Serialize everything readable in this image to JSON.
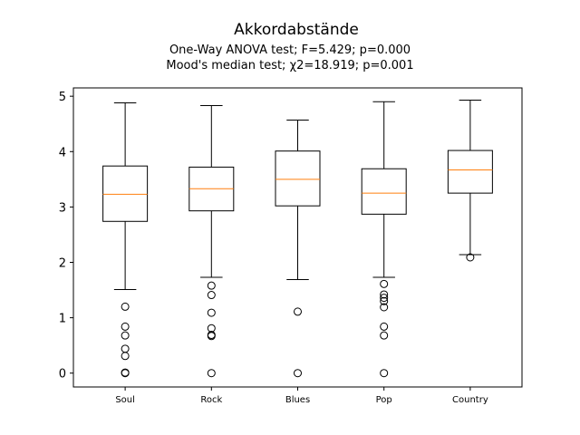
{
  "chart_data": {
    "type": "box",
    "title": "Akkordabstände",
    "subtitle_lines": [
      "One-Way ANOVA test; F=5.429; p=0.000",
      "Mood's median test; χ2=18.919; p=0.001"
    ],
    "xlabel": "",
    "ylabel": "",
    "ylim": [
      -0.25,
      5.15
    ],
    "yticks": [
      0,
      1,
      2,
      3,
      4,
      5
    ],
    "grid": false,
    "legend": "none",
    "colors": {
      "box": "#000000",
      "median": "#ff7f0e",
      "flier": "#000000"
    },
    "categories": [
      "Soul",
      "Rock",
      "Blues",
      "Pop",
      "Country"
    ],
    "boxes": [
      {
        "category": "Soul",
        "whisker_low": 1.51,
        "q1": 2.74,
        "median": 3.23,
        "q3": 3.74,
        "whisker_high": 4.88,
        "outliers": [
          1.2,
          0.84,
          0.68,
          0.44,
          0.31,
          0.01,
          0.0
        ]
      },
      {
        "category": "Rock",
        "whisker_low": 1.73,
        "q1": 2.93,
        "median": 3.33,
        "q3": 3.72,
        "whisker_high": 4.83,
        "outliers": [
          1.58,
          1.41,
          1.09,
          0.81,
          0.69,
          0.67,
          0.0
        ]
      },
      {
        "category": "Blues",
        "whisker_low": 1.69,
        "q1": 3.02,
        "median": 3.5,
        "q3": 4.01,
        "whisker_high": 4.57,
        "outliers": [
          1.11,
          0.0
        ]
      },
      {
        "category": "Pop",
        "whisker_low": 1.73,
        "q1": 2.87,
        "median": 3.25,
        "q3": 3.69,
        "whisker_high": 4.9,
        "outliers": [
          1.61,
          1.42,
          1.36,
          1.3,
          1.19,
          0.84,
          0.68,
          0.0
        ]
      },
      {
        "category": "Country",
        "whisker_low": 2.14,
        "q1": 3.25,
        "median": 3.67,
        "q3": 4.02,
        "whisker_high": 4.93,
        "outliers": [
          2.09
        ]
      }
    ]
  }
}
